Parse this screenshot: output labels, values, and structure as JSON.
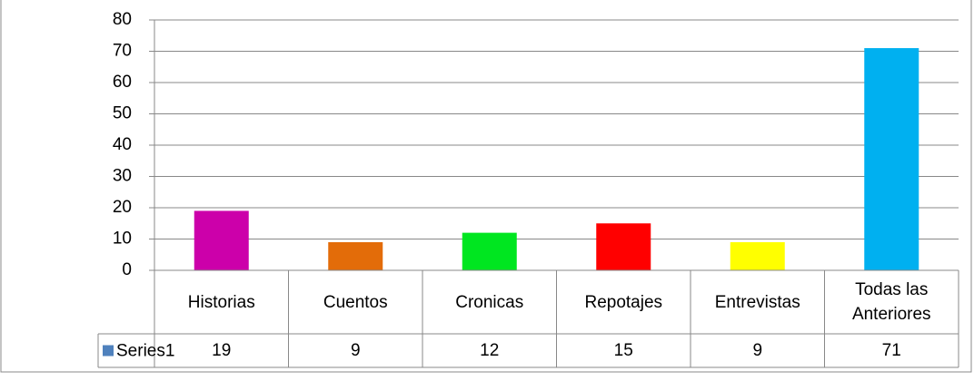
{
  "chart_data": {
    "type": "bar",
    "categories": [
      "Historias",
      "Cuentos",
      "Cronicas",
      "Repotajes",
      "Entrevistas",
      "Todas las Anteriores"
    ],
    "series": [
      {
        "name": "Series1",
        "color": "#4f81bd",
        "colors": [
          "#cc00aa",
          "#e36c09",
          "#00e620",
          "#ff0000",
          "#ffff00",
          "#00b0f0"
        ],
        "values": [
          19,
          9,
          12,
          15,
          9,
          71
        ]
      }
    ],
    "ylim": [
      0,
      80
    ],
    "yticks": [
      0,
      10,
      20,
      30,
      40,
      50,
      60,
      70,
      80
    ],
    "grid": true,
    "data_table": true
  }
}
